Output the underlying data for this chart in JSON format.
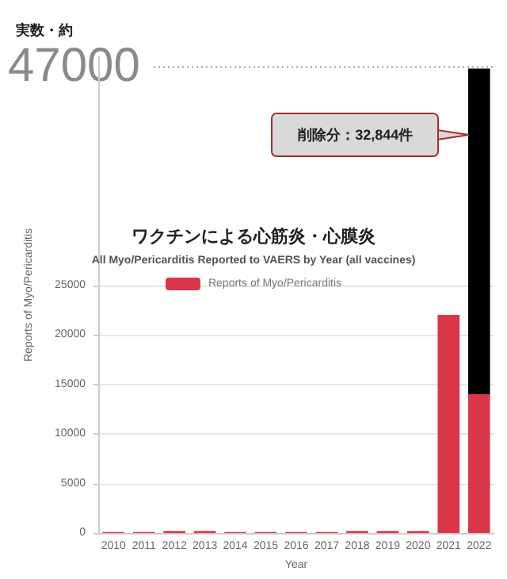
{
  "chart_data": {
    "type": "bar",
    "title": "ワクチンによる心筋炎・心膜炎",
    "subtitle": "All Myo/Pericarditis Reported to VAERS by Year (all vaccines)",
    "xlabel": "Year",
    "ylabel": "Reports of Myo/Pericarditis",
    "categories": [
      "2010",
      "2011",
      "2012",
      "2013",
      "2014",
      "2015",
      "2016",
      "2017",
      "2018",
      "2019",
      "2020",
      "2021",
      "2022"
    ],
    "stacked": true,
    "series": [
      {
        "name": "Reports of Myo/Pericarditis",
        "color": "#d9364a",
        "values": [
          100,
          100,
          200,
          200,
          100,
          100,
          100,
          100,
          200,
          200,
          200,
          22000,
          14000
        ]
      },
      {
        "color": "#000000",
        "values": [
          null,
          null,
          null,
          null,
          null,
          null,
          null,
          null,
          null,
          null,
          null,
          null,
          32844
        ]
      }
    ],
    "ylim": [
      0,
      48000
    ],
    "yticks": [
      0,
      5000,
      10000,
      15000,
      20000,
      25000
    ],
    "ref_lines": [
      {
        "axis": "y",
        "value": 47000,
        "label": "47000",
        "line_style": "dotted",
        "color": "#999999"
      }
    ],
    "annotations": [
      "実数・約",
      "削除分：32,844件"
    ],
    "grid": "y",
    "legend": "top"
  }
}
